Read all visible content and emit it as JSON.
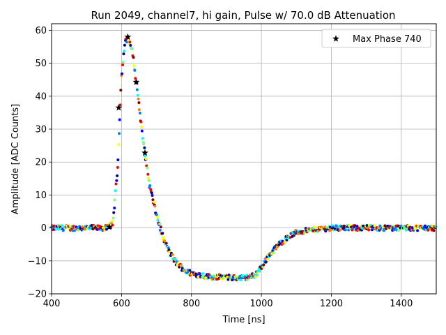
{
  "chart_data": {
    "type": "scatter",
    "title": "Run 2049, channel7, hi gain, Pulse w/ 70.0 dB Attenuation",
    "xlabel": "Time [ns]",
    "ylabel": "Amplitude [ADC Counts]",
    "xlim": [
      400,
      1500
    ],
    "ylim": [
      -20,
      62
    ],
    "xticks": [
      400,
      600,
      800,
      1000,
      1200,
      1400
    ],
    "yticks": [
      -20,
      -10,
      0,
      10,
      20,
      30,
      40,
      50,
      60
    ],
    "xtick_labels": [
      "400",
      "600",
      "800",
      "1000",
      "1200",
      "1400"
    ],
    "ytick_labels": [
      "−20",
      "−10",
      "0",
      "10",
      "20",
      "30",
      "40",
      "50",
      "60"
    ],
    "grid": true,
    "legend": {
      "location": "top-right",
      "entries": [
        {
          "label": "Max Phase 740",
          "marker": "star",
          "color": "#000000"
        }
      ]
    },
    "waveform": {
      "description_note": "scatter samples colored by phase using jet colormap",
      "colormap": [
        "#00007f",
        "#0000ff",
        "#007fff",
        "#00ffff",
        "#7fff7f",
        "#ffff00",
        "#ff7f00",
        "#ff0000",
        "#7f0000"
      ],
      "x": [
        400,
        560,
        575,
        590,
        600,
        610,
        618,
        630,
        645,
        660,
        680,
        700,
        720,
        740,
        760,
        780,
        800,
        850,
        900,
        950,
        980,
        1000,
        1020,
        1050,
        1080,
        1100,
        1150,
        1200,
        1300,
        1400,
        1500
      ],
      "y": [
        0,
        0,
        1.5,
        20,
        46,
        56,
        58,
        54,
        42,
        28,
        13,
        4,
        -3.5,
        -8,
        -11,
        -12.8,
        -13.8,
        -14.8,
        -15,
        -15.2,
        -14.5,
        -12,
        -8.5,
        -5,
        -2.5,
        -1.3,
        -0.5,
        0,
        0,
        0,
        0
      ]
    },
    "max_phase_series": {
      "name": "Max Phase 740",
      "x": [
        565,
        592,
        618,
        642,
        667
      ],
      "y": [
        0.3,
        36.5,
        58,
        44.3,
        22.8
      ]
    }
  }
}
